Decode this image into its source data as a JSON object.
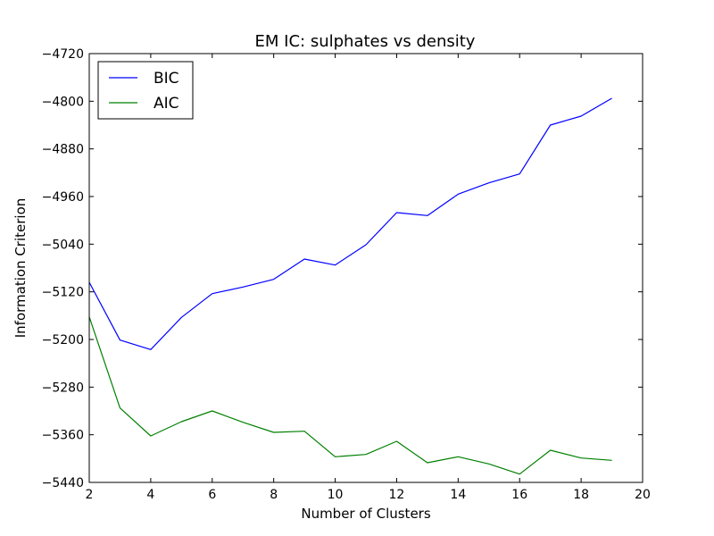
{
  "chart_data": {
    "type": "line",
    "title": "EM IC: sulphates vs density",
    "xlabel": "Number of Clusters",
    "ylabel": "Information Criterion",
    "xlim": [
      2,
      20
    ],
    "ylim": [
      -5440,
      -4720
    ],
    "xticks": [
      2,
      4,
      6,
      8,
      10,
      12,
      14,
      16,
      18,
      20
    ],
    "yticks": [
      -4720,
      -4800,
      -4880,
      -4960,
      -5040,
      -5120,
      -5200,
      -5280,
      -5360,
      -5440
    ],
    "grid": false,
    "legend_position": "top-left",
    "series": [
      {
        "name": "BIC",
        "color": "#0000ff",
        "x": [
          2,
          3,
          4,
          5,
          6,
          7,
          8,
          9,
          10,
          11,
          12,
          13,
          14,
          15,
          16,
          17,
          18,
          19
        ],
        "y": [
          -5104,
          -5201,
          -5217,
          -5163,
          -5123,
          -5112,
          -5099,
          -5065,
          -5075,
          -5041,
          -4987,
          -4992,
          -4956,
          -4937,
          -4922,
          -4840,
          -4825,
          -4795
        ]
      },
      {
        "name": "AIC",
        "color": "#008000",
        "x": [
          2,
          3,
          4,
          5,
          6,
          7,
          8,
          9,
          10,
          11,
          12,
          13,
          14,
          15,
          16,
          17,
          18,
          19
        ],
        "y": [
          -5162,
          -5315,
          -5362,
          -5338,
          -5320,
          -5339,
          -5356,
          -5354,
          -5397,
          -5393,
          -5371,
          -5407,
          -5397,
          -5409,
          -5426,
          -5386,
          -5399,
          -5403
        ]
      }
    ]
  }
}
